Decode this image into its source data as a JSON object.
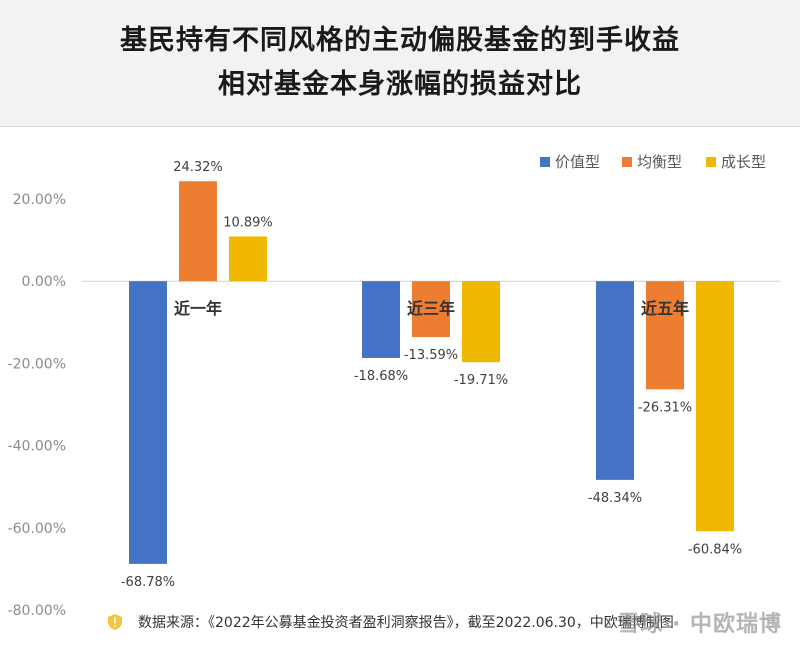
{
  "title": {
    "line1": "基民持有不同风格的主动偏股基金的到手收益",
    "line2": "相对基金本身涨幅的损益对比"
  },
  "chart_data": {
    "type": "bar",
    "categories": [
      "近一年",
      "近三年",
      "近五年"
    ],
    "series": [
      {
        "name": "价值型",
        "color": "#4472c4",
        "values": [
          -68.78,
          -18.68,
          -48.34
        ],
        "labels": [
          "-68.78%",
          "-18.68%",
          "-48.34%"
        ]
      },
      {
        "name": "均衡型",
        "color": "#ed7d31",
        "values": [
          24.32,
          -13.59,
          -26.31
        ],
        "labels": [
          "24.32%",
          "-13.59%",
          "-26.31%"
        ]
      },
      {
        "name": "成长型",
        "color": "#f0b800",
        "values": [
          10.89,
          -19.71,
          -60.84
        ],
        "labels": [
          "10.89%",
          "-19.71%",
          "-60.84%"
        ]
      }
    ],
    "yticks": [
      20,
      0,
      -20,
      -40,
      -60,
      -80
    ],
    "ytick_labels": [
      "20.00%",
      "0.00%",
      "-20.00%",
      "-40.00%",
      "-60.00%",
      "-80.00%"
    ],
    "ylim": [
      -80,
      20
    ],
    "legend_position": "top-right",
    "grid": false
  },
  "footer": {
    "source": "数据来源：《2022年公募基金投资者盈利洞察报告》，截至2022.06.30，中欧瑞博制图",
    "shield_icon": "shield-icon"
  },
  "watermark": "雪球 · 中欧瑞博"
}
